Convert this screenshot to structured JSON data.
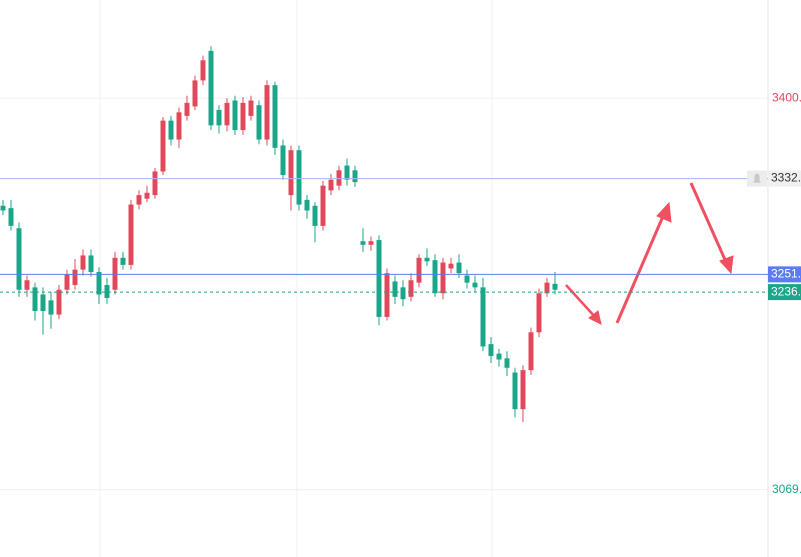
{
  "chart_data": {
    "type": "candlestick",
    "categories": [
      null,
      null,
      null,
      null,
      null,
      null,
      null,
      null,
      null,
      null,
      null,
      null,
      null,
      null,
      null,
      null,
      null,
      null,
      null,
      null,
      null,
      null,
      null,
      null,
      null,
      null,
      null,
      null,
      null,
      null,
      null,
      null,
      null,
      null,
      null,
      null,
      null,
      null,
      null,
      null,
      null,
      null,
      null,
      null,
      null,
      null,
      null,
      null,
      null,
      null,
      null,
      null,
      null,
      null,
      null,
      null,
      null,
      null,
      null,
      null,
      null,
      null,
      null,
      null,
      null,
      null,
      null,
      null,
      null,
      null
    ],
    "open": [
      3309,
      3307,
      3290,
      3238,
      3240,
      3234,
      3229,
      3217,
      3238,
      3242,
      3255,
      3267,
      3253,
      3242,
      3238,
      3265,
      3259,
      3310,
      3315,
      3318,
      3338,
      3381,
      3365,
      3385,
      3393,
      3415,
      3440,
      3390,
      3377,
      3398,
      3373,
      3385,
      3394,
      3365,
      3411,
      3360,
      3318,
      3356,
      3314,
      3309,
      3292,
      3322,
      3326,
      3343,
      3339,
      3279,
      3276,
      3280,
      3215,
      3245,
      3240,
      3232,
      3244,
      3265,
      3263,
      3235,
      3256,
      3261,
      3250,
      3244,
      3240,
      3192,
      3184,
      3180,
      3168,
      3137,
      3170,
      3202,
      3235,
      3243
    ],
    "high": [
      3314,
      3314,
      3295,
      3250,
      3244,
      3240,
      3236,
      3242,
      3255,
      3264,
      3272,
      3272,
      3257,
      3248,
      3270,
      3270,
      3314,
      3322,
      3326,
      3341,
      3384,
      3385,
      3392,
      3402,
      3419,
      3436,
      3444,
      3394,
      3400,
      3402,
      3401,
      3402,
      3398,
      3415,
      3414,
      3365,
      3360,
      3360,
      3318,
      3312,
      3330,
      3336,
      3343,
      3349,
      3343,
      3290,
      3283,
      3284,
      3256,
      3250,
      3246,
      3252,
      3268,
      3273,
      3268,
      3265,
      3265,
      3268,
      3255,
      3250,
      3248,
      3198,
      3188,
      3186,
      3172,
      3174,
      3206,
      3239,
      3248,
      3253
    ],
    "low": [
      3301,
      3288,
      3232,
      3232,
      3212,
      3200,
      3205,
      3213,
      3234,
      3238,
      3250,
      3249,
      3226,
      3226,
      3234,
      3255,
      3255,
      3306,
      3312,
      3315,
      3335,
      3360,
      3358,
      3381,
      3390,
      3411,
      3373,
      3370,
      3372,
      3369,
      3369,
      3381,
      3361,
      3360,
      3352,
      3331,
      3305,
      3305,
      3298,
      3278,
      3288,
      3318,
      3322,
      3326,
      3325,
      3270,
      3271,
      3208,
      3212,
      3226,
      3224,
      3228,
      3240,
      3258,
      3232,
      3230,
      3252,
      3248,
      3239,
      3236,
      3186,
      3176,
      3173,
      3165,
      3130,
      3126,
      3166,
      3198,
      3232,
      3234
    ],
    "close": [
      3305,
      3292,
      3238,
      3246,
      3220,
      3220,
      3217,
      3238,
      3251,
      3255,
      3267,
      3253,
      3234,
      3231,
      3265,
      3259,
      3310,
      3318,
      3320,
      3338,
      3381,
      3365,
      3388,
      3396,
      3415,
      3432,
      3377,
      3377,
      3396,
      3373,
      3396,
      3398,
      3365,
      3411,
      3358,
      3335,
      3356,
      3310,
      3305,
      3292,
      3326,
      3331,
      3339,
      3331,
      3329,
      3276,
      3279,
      3215,
      3252,
      3232,
      3230,
      3246,
      3265,
      3262,
      3235,
      3261,
      3260,
      3252,
      3244,
      3240,
      3190,
      3182,
      3179,
      3172,
      3137,
      3170,
      3202,
      3235,
      3244,
      3238
    ],
    "up_color": "#e0485b",
    "down_color": "#1ba589",
    "ylim": [
      3012,
      3483
    ],
    "yticks": [
      {
        "value": 3400,
        "label": "3400."
      },
      {
        "value": 3069,
        "label": "3069."
      }
    ],
    "price_lines": [
      {
        "value": 3332,
        "label": "3332.",
        "color": "#a8b8f0",
        "dashed": false
      },
      {
        "value": 3251,
        "label": "3251.",
        "color": "#5b7cf5",
        "dashed": false
      },
      {
        "value": 3236,
        "label": "3236.",
        "color": "#1ba589",
        "dashed": true
      }
    ],
    "grid": true
  }
}
